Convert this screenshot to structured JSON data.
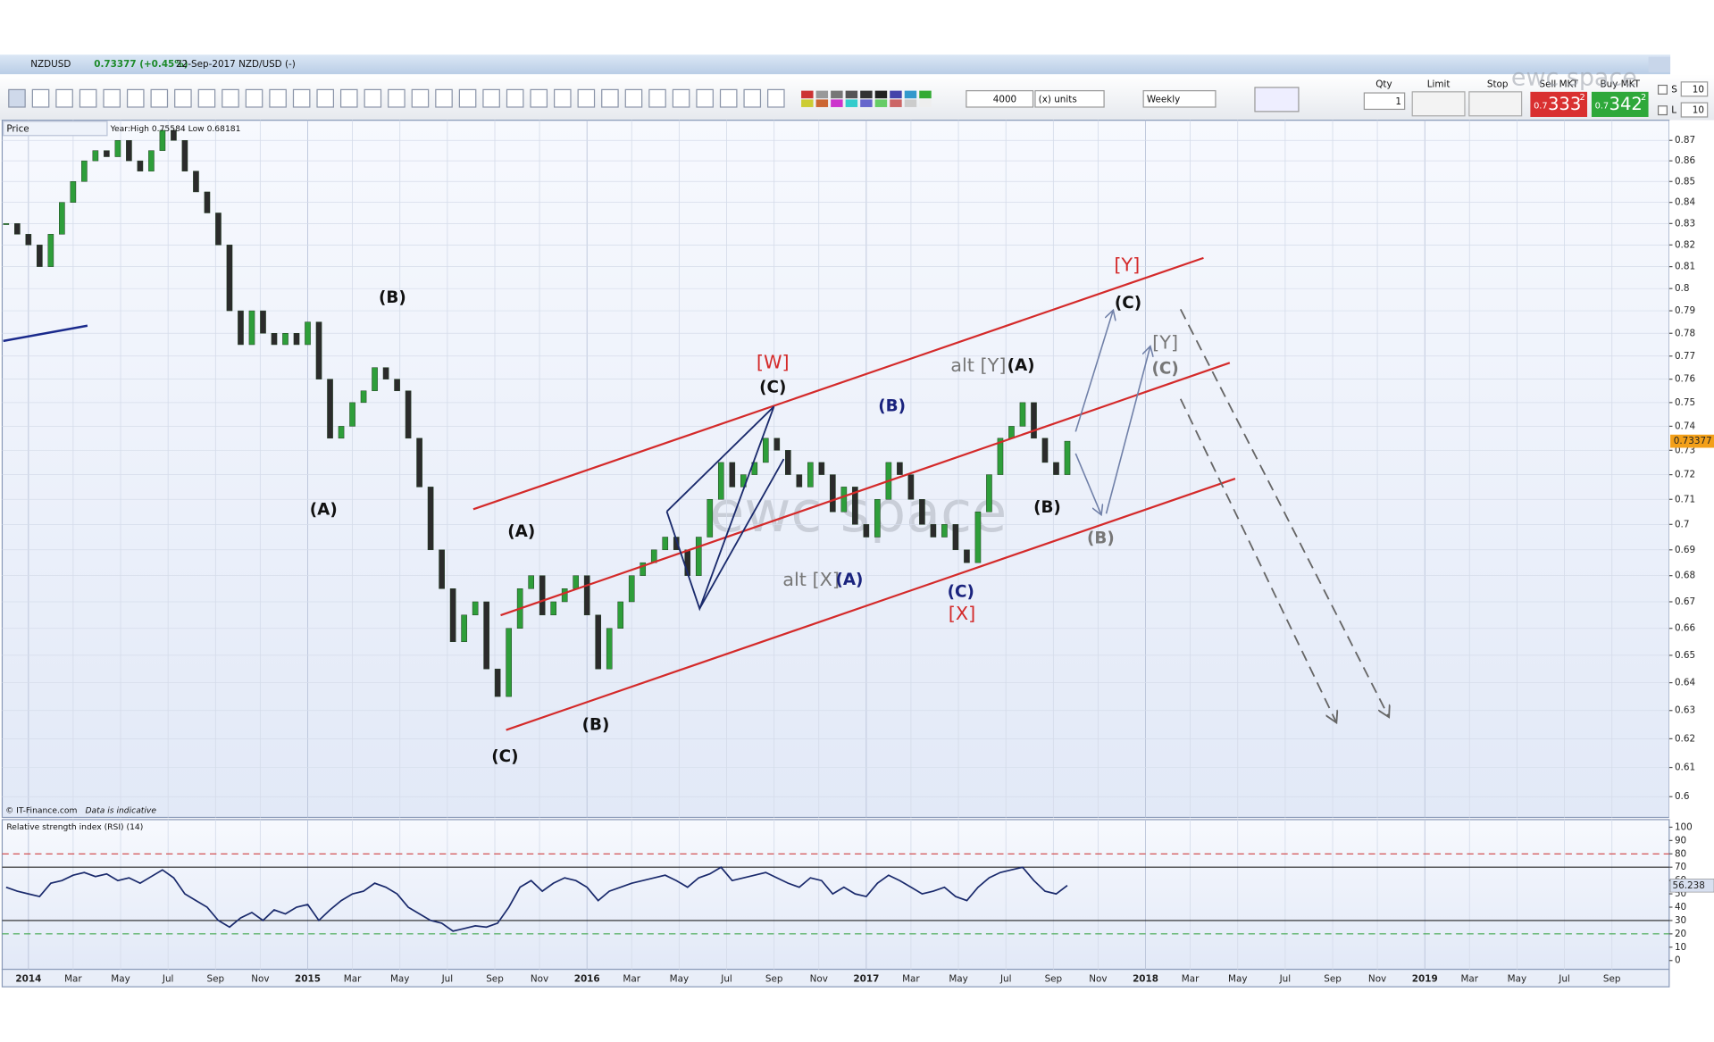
{
  "window": {
    "symbol": "NZDUSD",
    "quote": "0.73377 (+0.45%)",
    "date": "22-Sep-2017 NZD/USD (-)"
  },
  "toolbar": {
    "quantity": "4000",
    "units": "(x) units",
    "interval": "Weekly",
    "qty_label": "Qty",
    "qty": "1",
    "limit_label": "Limit",
    "stop_label": "Stop",
    "sell_label": "Sell MKT",
    "sell_price": {
      "lead": "0.7",
      "big": "333",
      "tail": "2"
    },
    "buy_label": "Buy MKT",
    "buy_price": {
      "lead": "0.7",
      "big": "342",
      "tail": "2"
    },
    "s_label": "S",
    "s_value": "10",
    "l_label": "L",
    "l_value": "10"
  },
  "watermark": "ewc space",
  "price_panel": {
    "label": "Price",
    "info": "Year:High 0.75584 Low 0.68181",
    "footer": "© IT-Finance.com",
    "disclaimer": "Data is indicative"
  },
  "rsi_panel": {
    "label": "Relative strength index (RSI) (14)"
  },
  "annotations": [
    {
      "text": "(B)",
      "color": "#111111"
    },
    {
      "text": "(A)",
      "color": "#111111"
    },
    {
      "text": "(A)",
      "color": "#111111"
    },
    {
      "text": "(C)",
      "color": "#111111"
    },
    {
      "text": "(B)",
      "color": "#111111"
    },
    {
      "text": "[W]",
      "color": "#d42a2a"
    },
    {
      "text": "(C)",
      "color": "#111111"
    },
    {
      "text": "(B)",
      "color": "#1a237e"
    },
    {
      "text": "alt [X]",
      "color": "#777777"
    },
    {
      "text": "(A)",
      "color": "#1a237e"
    },
    {
      "text": "(C)",
      "color": "#1a237e"
    },
    {
      "text": "[X]",
      "color": "#d42a2a"
    },
    {
      "text": "alt [Y]",
      "color": "#777777"
    },
    {
      "text": "(A)",
      "color": "#111111"
    },
    {
      "text": "(B)",
      "color": "#111111"
    },
    {
      "text": "[Y]",
      "color": "#d42a2a"
    },
    {
      "text": "(C)",
      "color": "#111111"
    },
    {
      "text": "[Y]",
      "color": "#777777"
    },
    {
      "text": "(C)",
      "color": "#777777"
    },
    {
      "text": "(B)",
      "color": "#777777"
    }
  ],
  "chart_data": [
    {
      "type": "candlestick",
      "log": true,
      "up_color": "#2e9e3a",
      "down_color": "#2b2b2b",
      "x": [
        2013.92,
        2013.96,
        2014,
        2014.04,
        2014.08,
        2014.12,
        2014.16,
        2014.2,
        2014.24,
        2014.28,
        2014.32,
        2014.36,
        2014.4,
        2014.44,
        2014.48,
        2014.52,
        2014.56,
        2014.6,
        2014.64,
        2014.68,
        2014.72,
        2014.76,
        2014.8,
        2014.84,
        2014.88,
        2014.92,
        2014.96,
        2015,
        2015.04,
        2015.08,
        2015.12,
        2015.16,
        2015.2,
        2015.24,
        2015.28,
        2015.32,
        2015.36,
        2015.4,
        2015.44,
        2015.48,
        2015.52,
        2015.56,
        2015.6,
        2015.64,
        2015.68,
        2015.72,
        2015.76,
        2015.8,
        2015.84,
        2015.88,
        2015.92,
        2015.96,
        2016,
        2016.04,
        2016.08,
        2016.12,
        2016.16,
        2016.2,
        2016.24,
        2016.28,
        2016.32,
        2016.36,
        2016.4,
        2016.44,
        2016.48,
        2016.52,
        2016.56,
        2016.6,
        2016.64,
        2016.68,
        2016.72,
        2016.76,
        2016.8,
        2016.84,
        2016.88,
        2016.92,
        2016.96,
        2017,
        2017.04,
        2017.08,
        2017.12,
        2017.16,
        2017.2,
        2017.24,
        2017.28,
        2017.32,
        2017.36,
        2017.4,
        2017.44,
        2017.48,
        2017.52,
        2017.56,
        2017.6,
        2017.64,
        2017.68,
        2017.72
      ],
      "close": [
        0.83,
        0.825,
        0.82,
        0.81,
        0.825,
        0.84,
        0.85,
        0.86,
        0.865,
        0.862,
        0.87,
        0.86,
        0.855,
        0.865,
        0.875,
        0.87,
        0.855,
        0.845,
        0.835,
        0.82,
        0.79,
        0.775,
        0.79,
        0.78,
        0.775,
        0.78,
        0.775,
        0.785,
        0.76,
        0.735,
        0.74,
        0.75,
        0.755,
        0.765,
        0.76,
        0.755,
        0.735,
        0.715,
        0.69,
        0.675,
        0.655,
        0.665,
        0.67,
        0.645,
        0.635,
        0.66,
        0.675,
        0.68,
        0.665,
        0.67,
        0.675,
        0.68,
        0.665,
        0.645,
        0.66,
        0.67,
        0.68,
        0.685,
        0.69,
        0.695,
        0.69,
        0.68,
        0.695,
        0.71,
        0.725,
        0.715,
        0.72,
        0.725,
        0.735,
        0.73,
        0.72,
        0.715,
        0.725,
        0.72,
        0.705,
        0.715,
        0.7,
        0.695,
        0.71,
        0.725,
        0.72,
        0.71,
        0.7,
        0.695,
        0.7,
        0.69,
        0.685,
        0.705,
        0.72,
        0.735,
        0.74,
        0.75,
        0.735,
        0.725,
        0.72,
        0.73377
      ],
      "xlim": [
        2013.906,
        2019.875
      ],
      "ylim": [
        0.593,
        0.88
      ],
      "yticks": [
        0.87,
        0.86,
        0.85,
        0.84,
        0.83,
        0.82,
        0.81,
        0.8,
        0.79,
        0.78,
        0.77,
        0.76,
        0.75,
        0.74,
        0.73,
        0.72,
        0.71,
        0.7,
        0.69,
        0.68,
        0.67,
        0.66,
        0.65,
        0.64,
        0.63,
        0.62,
        0.61,
        0.6
      ],
      "grid": true
    },
    {
      "type": "line",
      "color": "#1a2a6c",
      "x": [
        2013.92,
        2013.96,
        2014,
        2014.04,
        2014.08,
        2014.12,
        2014.16,
        2014.2,
        2014.24,
        2014.28,
        2014.32,
        2014.36,
        2014.4,
        2014.44,
        2014.48,
        2014.52,
        2014.56,
        2014.6,
        2014.64,
        2014.68,
        2014.72,
        2014.76,
        2014.8,
        2014.84,
        2014.88,
        2014.92,
        2014.96,
        2015,
        2015.04,
        2015.08,
        2015.12,
        2015.16,
        2015.2,
        2015.24,
        2015.28,
        2015.32,
        2015.36,
        2015.4,
        2015.44,
        2015.48,
        2015.52,
        2015.56,
        2015.6,
        2015.64,
        2015.68,
        2015.72,
        2015.76,
        2015.8,
        2015.84,
        2015.88,
        2015.92,
        2015.96,
        2016,
        2016.04,
        2016.08,
        2016.12,
        2016.16,
        2016.2,
        2016.24,
        2016.28,
        2016.32,
        2016.36,
        2016.4,
        2016.44,
        2016.48,
        2016.52,
        2016.56,
        2016.6,
        2016.64,
        2016.68,
        2016.72,
        2016.76,
        2016.8,
        2016.84,
        2016.88,
        2016.92,
        2016.96,
        2017,
        2017.04,
        2017.08,
        2017.12,
        2017.16,
        2017.2,
        2017.24,
        2017.28,
        2017.32,
        2017.36,
        2017.4,
        2017.44,
        2017.48,
        2017.52,
        2017.56,
        2017.6,
        2017.64,
        2017.68,
        2017.72
      ],
      "values": [
        55,
        52,
        50,
        48,
        58,
        60,
        64,
        66,
        63,
        65,
        60,
        62,
        58,
        63,
        68,
        62,
        50,
        45,
        40,
        30,
        25,
        32,
        36,
        30,
        38,
        35,
        40,
        42,
        30,
        38,
        45,
        50,
        52,
        58,
        55,
        50,
        40,
        35,
        30,
        28,
        22,
        24,
        26,
        25,
        28,
        40,
        55,
        60,
        52,
        58,
        62,
        60,
        55,
        45,
        52,
        55,
        58,
        60,
        62,
        64,
        60,
        55,
        62,
        65,
        70,
        60,
        62,
        64,
        66,
        62,
        58,
        55,
        62,
        60,
        50,
        55,
        50,
        48,
        58,
        64,
        60,
        55,
        50,
        52,
        55,
        48,
        45,
        55,
        62,
        66,
        68,
        70,
        60,
        52,
        50,
        56.238
      ],
      "xlim": [
        2013.906,
        2019.875
      ],
      "ylim": [
        -6.6,
        105.7
      ],
      "yticks": [
        100,
        90,
        80,
        70,
        60,
        50,
        40,
        30,
        20,
        10,
        0
      ],
      "levels": [
        {
          "value": 80,
          "color": "#d04040",
          "dashed": true
        },
        {
          "value": 70,
          "color": "#222222",
          "dashed": false
        },
        {
          "value": 30,
          "color": "#222222",
          "dashed": false
        },
        {
          "value": 20,
          "color": "#2e9e3a",
          "dashed": true
        }
      ],
      "xticks": [
        2014,
        {
          "value": 2014.16,
          "label": "Mar"
        },
        {
          "value": 2014.33,
          "label": "May"
        },
        {
          "value": 2014.5,
          "label": "Jul"
        },
        {
          "value": 2014.67,
          "label": "Sep"
        },
        {
          "value": 2014.83,
          "label": "Nov"
        },
        2015,
        {
          "value": 2015.16,
          "label": "Mar"
        },
        {
          "value": 2015.33,
          "label": "May"
        },
        {
          "value": 2015.5,
          "label": "Jul"
        },
        {
          "value": 2015.67,
          "label": "Sep"
        },
        {
          "value": 2015.83,
          "label": "Nov"
        },
        2016,
        {
          "value": 2016.16,
          "label": "Mar"
        },
        {
          "value": 2016.33,
          "label": "May"
        },
        {
          "value": 2016.5,
          "label": "Jul"
        },
        {
          "value": 2016.67,
          "label": "Sep"
        },
        {
          "value": 2016.83,
          "label": "Nov"
        },
        2017,
        {
          "value": 2017.16,
          "label": "Mar"
        },
        {
          "value": 2017.33,
          "label": "May"
        },
        {
          "value": 2017.5,
          "label": "Jul"
        },
        {
          "value": 2017.67,
          "label": "Sep"
        },
        {
          "value": 2017.83,
          "label": "Nov"
        },
        2018,
        {
          "value": 2018.16,
          "label": "Mar"
        },
        {
          "value": 2018.33,
          "label": "May"
        },
        {
          "value": 2018.5,
          "label": "Jul"
        },
        {
          "value": 2018.67,
          "label": "Sep"
        },
        {
          "value": 2018.83,
          "label": "Nov"
        },
        2019,
        {
          "value": 2019.16,
          "label": "Mar"
        },
        {
          "value": 2019.33,
          "label": "May"
        },
        {
          "value": 2019.5,
          "label": "Jul"
        },
        {
          "value": 2019.67,
          "label": "Sep"
        }
      ]
    }
  ]
}
